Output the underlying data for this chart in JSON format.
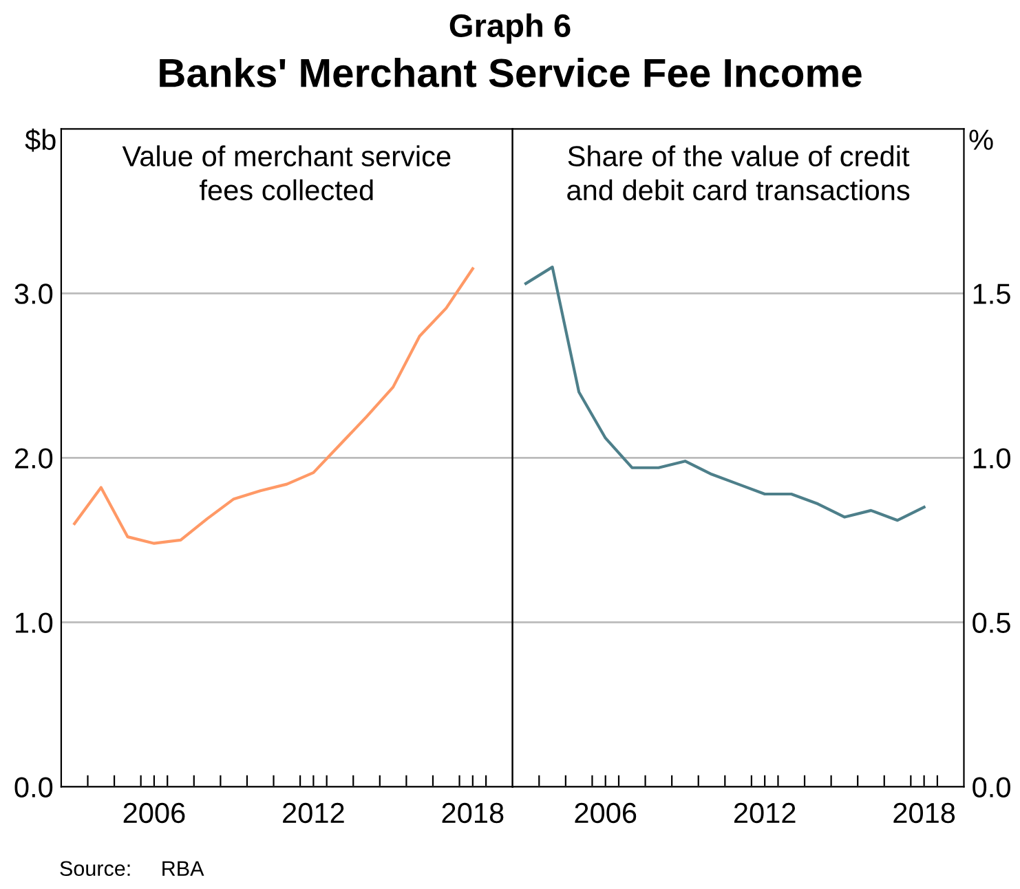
{
  "chart_data": [
    {
      "type": "line",
      "title": "Graph 6",
      "subtitle": "Banks' Merchant Service Fee Income",
      "ylabel": "$b",
      "x": [
        2003.5,
        2004.5,
        2005.5,
        2006.5,
        2007.5,
        2008.5,
        2009.5,
        2010.5,
        2011.5,
        2012.5,
        2013.5,
        2014.5,
        2015.5,
        2016.5,
        2017.5,
        2018.5
      ],
      "series": [
        {
          "color": "#ff9966",
          "values": [
            1.6,
            1.82,
            1.52,
            1.48,
            1.5,
            1.63,
            1.75,
            1.8,
            1.84,
            1.91,
            2.08,
            2.25,
            2.43,
            2.74,
            2.91,
            3.15
          ]
        }
      ],
      "xlim": [
        2003,
        2020
      ],
      "ylim": [
        0,
        4
      ],
      "xticks": [
        {
          "value": 2004,
          "label": null
        },
        {
          "value": 2005,
          "label": null
        },
        {
          "value": 2006,
          "label": null
        },
        {
          "value": 2006.5,
          "label": "2006"
        },
        {
          "value": 2007,
          "label": null
        },
        {
          "value": 2008,
          "label": null
        },
        {
          "value": 2009,
          "label": null
        },
        {
          "value": 2010,
          "label": null
        },
        {
          "value": 2011,
          "label": null
        },
        {
          "value": 2012,
          "label": null
        },
        {
          "value": 2012.5,
          "label": "2012"
        },
        {
          "value": 2013,
          "label": null
        },
        {
          "value": 2014,
          "label": null
        },
        {
          "value": 2015,
          "label": null
        },
        {
          "value": 2016,
          "label": null
        },
        {
          "value": 2017,
          "label": null
        },
        {
          "value": 2018,
          "label": null
        },
        {
          "value": 2018.5,
          "label": "2018"
        },
        {
          "value": 2019,
          "label": null
        }
      ],
      "yticks": [
        {
          "value": 0,
          "label": "0.0"
        },
        {
          "value": 1,
          "label": "1.0"
        },
        {
          "value": 2,
          "label": "2.0"
        },
        {
          "value": 3,
          "label": "3.0"
        }
      ],
      "grid": "y",
      "marker": "none",
      "line_style": "solid",
      "annotations": [
        "Value of merchant service\nfees collected",
        "Source:     RBA"
      ]
    },
    {
      "type": "line",
      "y2label": "%",
      "x": [
        2003.5,
        2004.5,
        2005.5,
        2006.5,
        2007.5,
        2008.5,
        2009.5,
        2010.5,
        2011.5,
        2012.5,
        2013.5,
        2014.5,
        2015.5,
        2016.5,
        2017.5,
        2018.5
      ],
      "series": [
        {
          "color": "#4d7f8a",
          "axis": "y2",
          "values": [
            1.53,
            1.58,
            1.2,
            1.06,
            0.97,
            0.97,
            0.99,
            0.95,
            0.92,
            0.89,
            0.89,
            0.86,
            0.82,
            0.84,
            0.81,
            0.85
          ]
        }
      ],
      "xlim": [
        2003,
        2020
      ],
      "y2lim": [
        0,
        2
      ],
      "xticks": [
        {
          "value": 2004,
          "label": null
        },
        {
          "value": 2005,
          "label": null
        },
        {
          "value": 2006,
          "label": null
        },
        {
          "value": 2006.5,
          "label": "2006"
        },
        {
          "value": 2007,
          "label": null
        },
        {
          "value": 2008,
          "label": null
        },
        {
          "value": 2009,
          "label": null
        },
        {
          "value": 2010,
          "label": null
        },
        {
          "value": 2011,
          "label": null
        },
        {
          "value": 2012,
          "label": null
        },
        {
          "value": 2012.5,
          "label": "2012"
        },
        {
          "value": 2013,
          "label": null
        },
        {
          "value": 2014,
          "label": null
        },
        {
          "value": 2015,
          "label": null
        },
        {
          "value": 2016,
          "label": null
        },
        {
          "value": 2017,
          "label": null
        },
        {
          "value": 2018,
          "label": null
        },
        {
          "value": 2018.5,
          "label": "2018"
        },
        {
          "value": 2019,
          "label": null
        }
      ],
      "y2ticks": [
        {
          "value": 0,
          "label": "0.0"
        },
        {
          "value": 0.5,
          "label": "0.5"
        },
        {
          "value": 1,
          "label": "1.0"
        },
        {
          "value": 1.5,
          "label": "1.5"
        }
      ],
      "grid": "y",
      "marker": "none",
      "line_style": "solid",
      "annotations": [
        "Share of the value of credit\nand debit card transactions"
      ]
    }
  ]
}
